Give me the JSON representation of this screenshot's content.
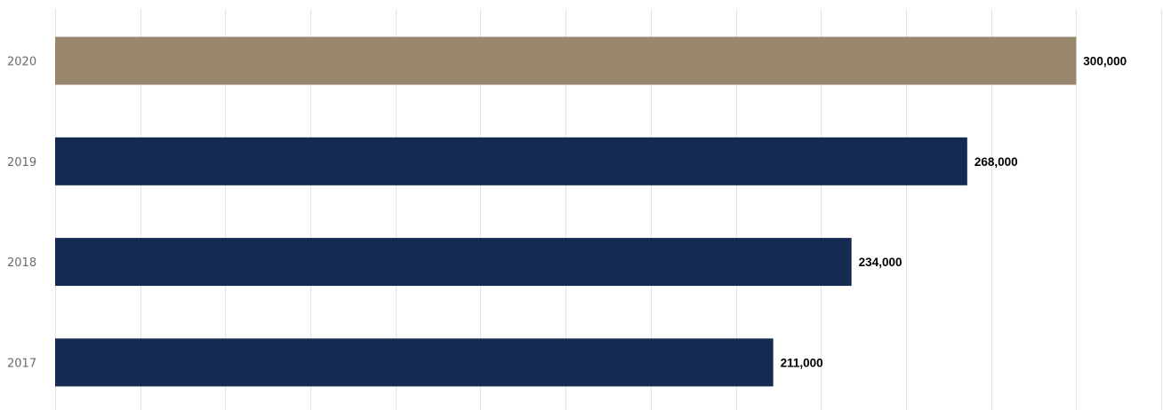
{
  "chart_data": {
    "type": "bar",
    "orientation": "horizontal",
    "categories": [
      "2020",
      "2019",
      "2018",
      "2017"
    ],
    "values": [
      300000,
      268000,
      234000,
      211000
    ],
    "data_labels": [
      "300,000",
      "268,000",
      "234,000",
      "211,000"
    ],
    "highlight_category": "2020",
    "xlim": [
      0,
      325000
    ],
    "grid": true,
    "title": "",
    "xlabel": "",
    "ylabel": "",
    "colors": {
      "default_bar": "#142a50",
      "highlight_bar": "#98876c",
      "grid": "#e3e3e3",
      "tick_text": "#6b6b6b",
      "label_text": "#000000"
    }
  }
}
